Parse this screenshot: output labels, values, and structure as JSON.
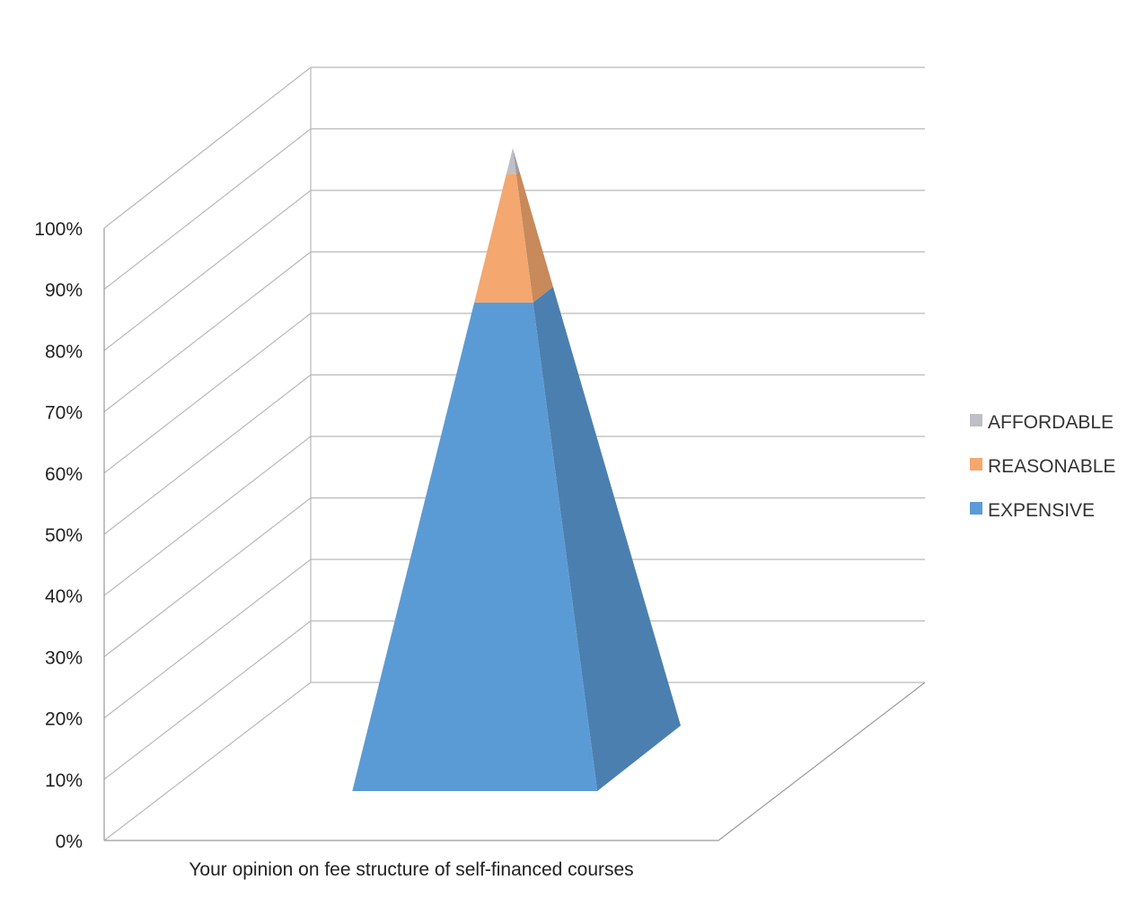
{
  "chart_data": {
    "type": "bar",
    "subtype": "100% stacked 3D pyramid",
    "categories": [
      "Your opinion on fee structure of self-financed courses"
    ],
    "series": [
      {
        "name": "EXPENSIVE",
        "values": [
          76
        ],
        "color": "#5b9bd5"
      },
      {
        "name": "REASONABLE",
        "values": [
          20
        ],
        "color": "#f4a76f"
      },
      {
        "name": "AFFORDABLE",
        "values": [
          4
        ],
        "color": "#bfbfc8"
      }
    ],
    "y_ticks": [
      "0%",
      "10%",
      "20%",
      "30%",
      "40%",
      "50%",
      "60%",
      "70%",
      "80%",
      "90%",
      "100%"
    ],
    "ylim": [
      0,
      100
    ],
    "grid": true,
    "legend": "right"
  }
}
